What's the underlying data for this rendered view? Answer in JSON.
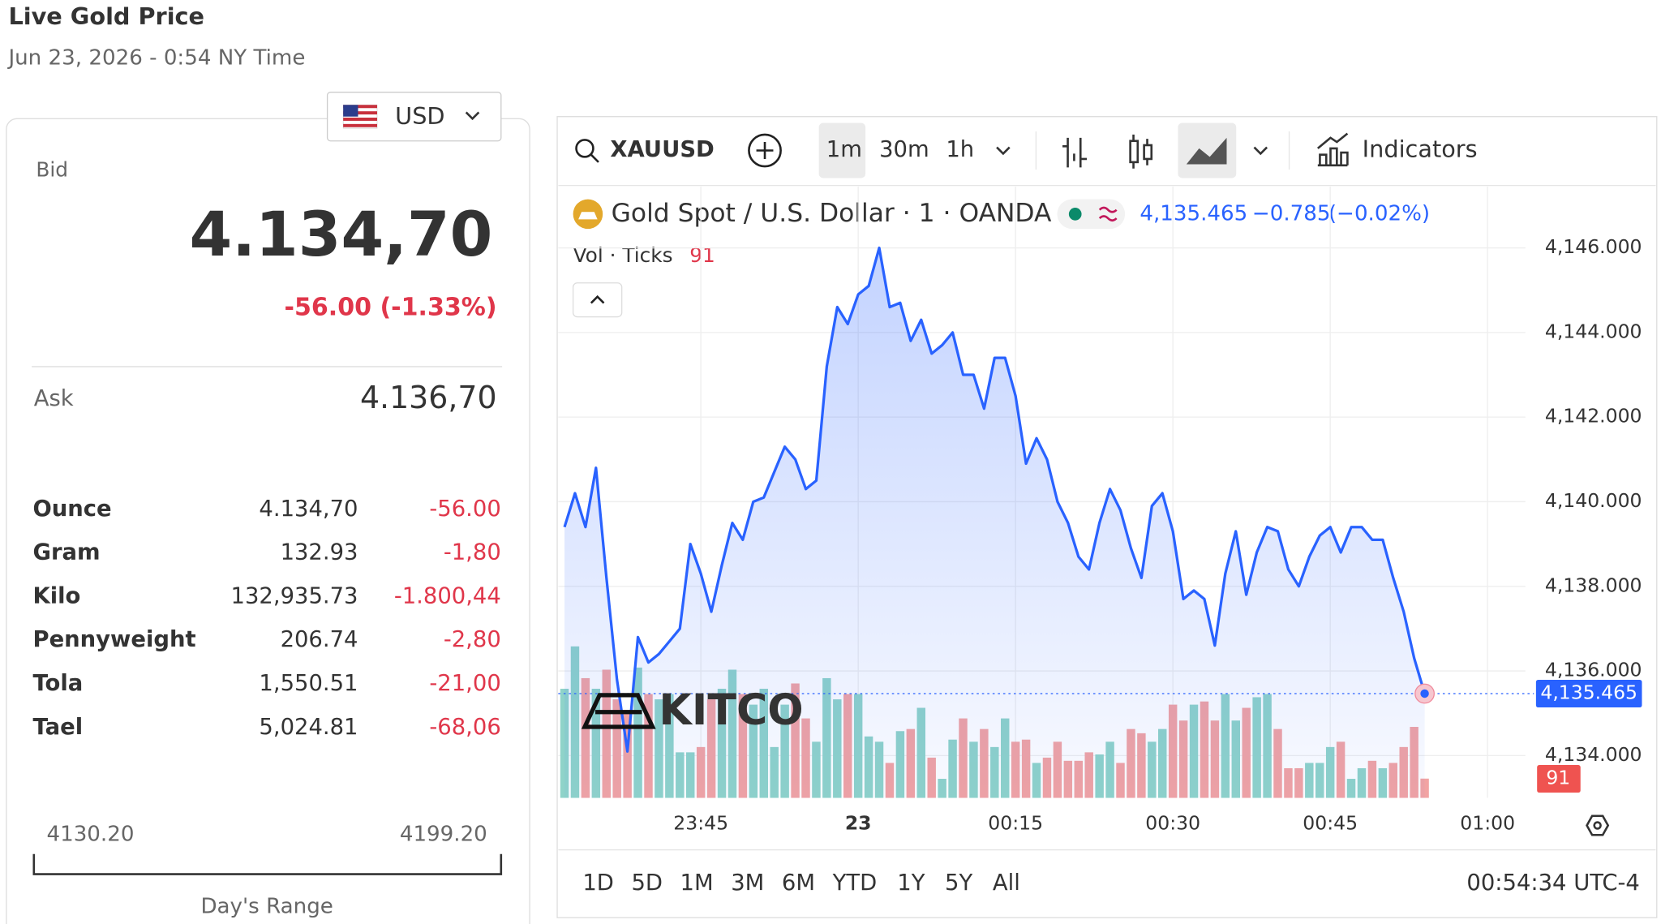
{
  "header": {
    "title": "Live Gold Price",
    "timestamp": "Jun 23, 2026 - 0:54 NY Time",
    "currency": "USD"
  },
  "quote": {
    "bid_label": "Bid",
    "bid": "4.134,70",
    "change": "-56.00 (-1.33%)",
    "ask_label": "Ask",
    "ask": "4.136,70"
  },
  "units": {
    "rows": [
      [
        "Ounce",
        "4.134,70",
        "-56.00"
      ],
      [
        "Gram",
        "132.93",
        "-1,80"
      ],
      [
        "Kilo",
        "132,935.73",
        "-1.800,44"
      ],
      [
        "Pennyweight",
        "206.74",
        "-2,80"
      ],
      [
        "Tola",
        "1,550.51",
        "-21,00"
      ],
      [
        "Tael",
        "5,024.81",
        "-68,06"
      ]
    ]
  },
  "range": {
    "low": "4130.20",
    "high": "4199.20",
    "label": "Day's Range"
  },
  "toolbar": {
    "symbol": "XAUUSD",
    "intervals": [
      "1m",
      "30m",
      "1h"
    ],
    "indicators": "Indicators"
  },
  "logo": "KITCO",
  "footer": {
    "ranges": [
      "1D",
      "5D",
      "1M",
      "3M",
      "6M",
      "YTD",
      "1Y",
      "5Y",
      "All"
    ],
    "clock": "00:54:34 UTC-4"
  },
  "chart_data": {
    "type": "line",
    "title": "Gold Spot / U.S. Dollar · 1 · OANDA",
    "change": "−0.785",
    "change_pct": "(−0.02%)",
    "x": [
      "23:32",
      "23:33",
      "23:34",
      "23:35",
      "23:36",
      "23:37",
      "23:38",
      "23:39",
      "23:40",
      "23:41",
      "23:42",
      "23:43",
      "23:44",
      "23:45",
      "23:46",
      "23:47",
      "23:48",
      "23:49",
      "23:50",
      "23:51",
      "23:52",
      "23:53",
      "23:54",
      "23:55",
      "23:56",
      "23:57",
      "23:58",
      "23:59",
      "00:00",
      "00:01",
      "00:02",
      "00:03",
      "00:04",
      "00:05",
      "00:06",
      "00:07",
      "00:08",
      "00:09",
      "00:10",
      "00:11",
      "00:12",
      "00:13",
      "00:14",
      "00:15",
      "00:16",
      "00:17",
      "00:18",
      "00:19",
      "00:20",
      "00:21",
      "00:22",
      "00:23",
      "00:24",
      "00:25",
      "00:26",
      "00:27",
      "00:28",
      "00:29",
      "00:30",
      "00:31",
      "00:32",
      "00:33",
      "00:34",
      "00:35",
      "00:36",
      "00:37",
      "00:38",
      "00:39",
      "00:40",
      "00:41",
      "00:42",
      "00:43",
      "00:44",
      "00:45",
      "00:46",
      "00:47",
      "00:48",
      "00:49",
      "00:50",
      "00:51",
      "00:52",
      "00:53",
      "00:54"
    ],
    "series": [
      {
        "name": "Gold Spot / U.S. Dollar · 1 · OANDA",
        "type": "line",
        "color": "#2962ff",
        "last_label": "4,135.465",
        "values": [
          4139.4,
          4140.2,
          4139.4,
          4140.8,
          4138.2,
          4135.8,
          4134.1,
          4136.8,
          4136.2,
          4136.4,
          4136.7,
          4137.0,
          4139.0,
          4138.3,
          4137.4,
          4138.5,
          4139.5,
          4139.1,
          4140.0,
          4140.1,
          4140.7,
          4141.3,
          4141.0,
          4140.3,
          4140.5,
          4143.2,
          4144.6,
          4144.2,
          4144.9,
          4145.1,
          4146.0,
          4144.6,
          4144.7,
          4143.8,
          4144.3,
          4143.5,
          4143.7,
          4144.0,
          4143.0,
          4143.0,
          4142.2,
          4143.4,
          4143.4,
          4142.5,
          4140.9,
          4141.5,
          4141.0,
          4140.0,
          4139.5,
          4138.7,
          4138.4,
          4139.5,
          4140.3,
          4139.8,
          4138.9,
          4138.2,
          4139.9,
          4140.2,
          4139.3,
          4137.7,
          4137.9,
          4137.7,
          4136.6,
          4138.3,
          4139.3,
          4137.8,
          4138.8,
          4139.4,
          4139.3,
          4138.4,
          4138.0,
          4138.7,
          4139.2,
          4139.4,
          4138.8,
          4139.4,
          4139.4,
          4139.1,
          4139.1,
          4138.2,
          4137.4,
          4136.3,
          4135.465
        ]
      },
      {
        "name": "Vol · Ticks",
        "type": "bar",
        "up_color": "#8fd3c9",
        "down_color": "#f2a3a3",
        "values": [
          515,
          715,
          565,
          515,
          605,
          465,
          415,
          615,
          490,
          465,
          490,
          215,
          215,
          240,
          465,
          515,
          605,
          490,
          440,
          515,
          240,
          440,
          540,
          375,
          265,
          565,
          465,
          490,
          490,
          290,
          265,
          165,
          315,
          325,
          425,
          190,
          90,
          275,
          375,
          265,
          325,
          240,
          375,
          265,
          275,
          165,
          190,
          265,
          175,
          175,
          215,
          205,
          265,
          165,
          325,
          305,
          265,
          325,
          440,
          365,
          440,
          455,
          365,
          490,
          365,
          425,
          475,
          490,
          325,
          140,
          140,
          165,
          165,
          240,
          265,
          90,
          140,
          175,
          140,
          165,
          240,
          335,
          91
        ]
      }
    ],
    "xlim": [
      "23:31",
      "01:03"
    ],
    "xticks": [
      {
        "value": "23:45",
        "label": "23:45"
      },
      {
        "value": "00:00",
        "label": "23"
      },
      {
        "value": "00:15",
        "label": "00:15"
      },
      {
        "value": "00:30",
        "label": "00:30"
      },
      {
        "value": "00:45",
        "label": "00:45"
      },
      {
        "value": "01:00",
        "label": "01:00"
      }
    ],
    "ylim": [
      4133,
      4147.4
    ],
    "yticks": [
      {
        "value": 4134,
        "label": "4,134.000"
      },
      {
        "value": 4136,
        "label": "4,136.000"
      },
      {
        "value": 4138,
        "label": "4,138.000"
      },
      {
        "value": 4140,
        "label": "4,140.000"
      },
      {
        "value": 4142,
        "label": "4,142.000"
      },
      {
        "value": 4144,
        "label": "4,144.000"
      },
      {
        "value": 4146,
        "label": "4,146.000"
      }
    ],
    "grid": true
  }
}
